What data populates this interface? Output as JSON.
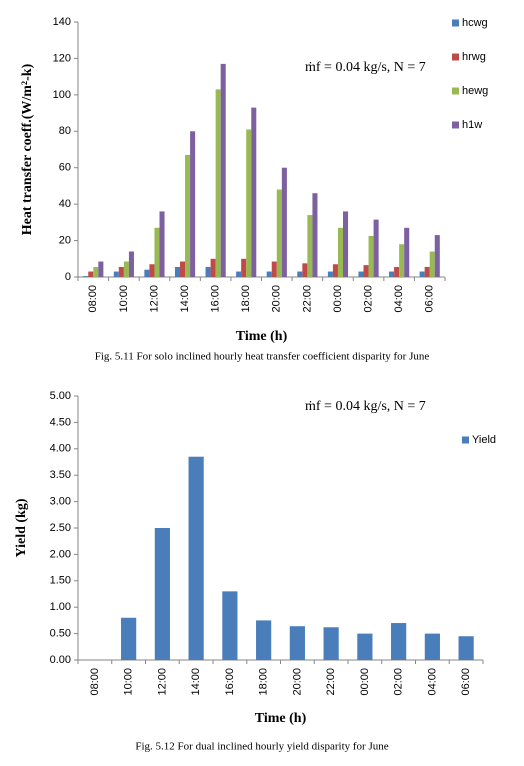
{
  "chart_data": [
    {
      "type": "bar",
      "y_label": "Heat transfer coeff.(W/m²-k)",
      "x_label": "Time (h)",
      "annotation": "ṁf = 0.04 kg/s, N = 7",
      "caption": "Fig. 5.11 For solo inclined hourly heat transfer coefficient disparity for June",
      "categories": [
        "08:00",
        "10:00",
        "12:00",
        "14:00",
        "16:00",
        "18:00",
        "20:00",
        "22:00",
        "00:00",
        "02:00",
        "04:00",
        "06:00"
      ],
      "series": [
        {
          "name": "hcwg",
          "color": "#4a7ebb",
          "values": [
            0.5,
            3,
            4,
            5.5,
            5.5,
            3,
            3,
            3,
            3,
            3,
            3,
            3
          ]
        },
        {
          "name": "hrwg",
          "color": "#be4b48",
          "values": [
            3,
            5.5,
            7,
            8.5,
            10,
            10,
            8.5,
            7.5,
            7,
            6.5,
            5.5,
            5.5
          ]
        },
        {
          "name": "hewg",
          "color": "#98b954",
          "values": [
            5.5,
            8.5,
            27,
            67,
            103,
            81,
            48,
            34,
            27,
            22.5,
            18,
            14
          ]
        },
        {
          "name": "h1w",
          "color": "#7d60a0",
          "values": [
            8.5,
            14,
            36,
            80,
            117,
            93,
            60,
            46,
            36,
            31.5,
            27,
            23
          ]
        }
      ],
      "ylim": [
        0,
        140
      ],
      "yticks": [
        0,
        20,
        40,
        60,
        80,
        100,
        120,
        140
      ]
    },
    {
      "type": "bar",
      "y_label": "Yield (kg)",
      "x_label": "Time (h)",
      "annotation": "ṁf = 0.04 kg/s, N = 7",
      "caption": "Fig. 5.12 For dual inclined hourly yield disparity for June",
      "categories": [
        "08:00",
        "10:00",
        "12:00",
        "14:00",
        "16:00",
        "18:00",
        "20:00",
        "22:00",
        "00:00",
        "02:00",
        "04:00",
        "06:00"
      ],
      "series": [
        {
          "name": "Yield",
          "color": "#4a7ebb",
          "values": [
            0,
            0.8,
            2.5,
            3.85,
            1.3,
            0.75,
            0.64,
            0.62,
            0.5,
            0.7,
            0.5,
            0.45
          ]
        }
      ],
      "ylim": [
        0,
        5
      ],
      "yticks": [
        {
          "value": 0,
          "label": "0.00"
        },
        {
          "value": 0.5,
          "label": "0.50"
        },
        {
          "value": 1,
          "label": "1.00"
        },
        {
          "value": 1.5,
          "label": "1.50"
        },
        {
          "value": 2,
          "label": "2.00"
        },
        {
          "value": 2.5,
          "label": "2.50"
        },
        {
          "value": 3,
          "label": "3.00"
        },
        {
          "value": 3.5,
          "label": "3.50"
        },
        {
          "value": 4,
          "label": "4.00"
        },
        {
          "value": 4.5,
          "label": "4.50"
        },
        {
          "value": 5,
          "label": "5.00"
        }
      ]
    }
  ]
}
